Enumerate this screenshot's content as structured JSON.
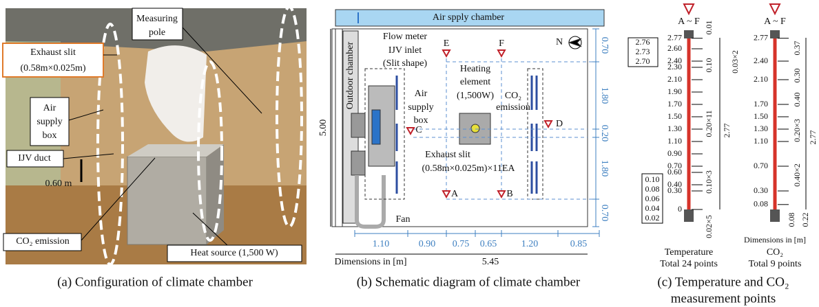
{
  "panel_a": {
    "caption": "(a) Configuration of climate chamber",
    "labels": [
      "Measuring",
      "pole",
      "Exhaust slit",
      "(0.58m×0.025m)",
      "Air",
      "supply",
      "box",
      "IJV duct",
      "0.60 m",
      "CO₂ emission",
      "Heat source (1,500 W)"
    ]
  },
  "panel_b": {
    "caption": "(b) Schematic diagram of climate chamber",
    "labels": [
      "Air spply chamber",
      "Outdoor chamber",
      "Flow meter",
      "IJV inlet",
      "(Slit shape)",
      "Air",
      "supply",
      "box",
      "Heating",
      "element",
      "(1,500W)",
      "CO₂",
      "emission",
      "Exhaust slit",
      "(0.58m×0.025m)×11EA",
      "Fan",
      "N",
      "Dimensions in [m]"
    ],
    "points": [
      "A",
      "B",
      "C",
      "D",
      "E",
      "F"
    ],
    "right_dims": [
      "0.70",
      "1.80",
      "0.20",
      "1.80",
      "0.70"
    ],
    "bottom_dims": [
      "1.10",
      "0.90",
      "0.75",
      "0.65",
      "1.20",
      "0.85"
    ],
    "height": "5.00",
    "width": "5.45"
  },
  "panel_c": {
    "caption": [
      "(c) Temperature and CO₂",
      "measurement points"
    ],
    "temperature": {
      "header": "A ~ F",
      "heights": [
        "2.77",
        "2.60",
        "2.40",
        "2.30",
        "2.10",
        "1.90",
        "1.70",
        "1.50",
        "1.30",
        "1.10",
        "0.90",
        "0.70",
        "0.60",
        "0.40",
        "0.30",
        "0"
      ],
      "upper_box": [
        "2.76",
        "2.73",
        "2.70"
      ],
      "lower_box": [
        "0.10",
        "0.08",
        "0.06",
        "0.04",
        "0.02"
      ],
      "notes": [
        "0.01",
        "0.10",
        "0.03×2",
        "0.20×11",
        "2.77",
        "0.10×3",
        "0.02×5"
      ],
      "caption": [
        "Temperature",
        "Total 24 points"
      ]
    },
    "co2": {
      "header": "A ~ F",
      "heights": [
        "2.77",
        "2.40",
        "2.10",
        "1.70",
        "1.50",
        "1.30",
        "1.10",
        "0.70",
        "0.30",
        "0.08"
      ],
      "notes": [
        "0.37",
        "0.30",
        "0.40",
        "0.20×3",
        "0.40×2",
        "2.77",
        "0.08",
        "0.22"
      ],
      "dims": "Dimensions in [m]",
      "caption": [
        "CO₂",
        "Total 9 points"
      ]
    }
  }
}
